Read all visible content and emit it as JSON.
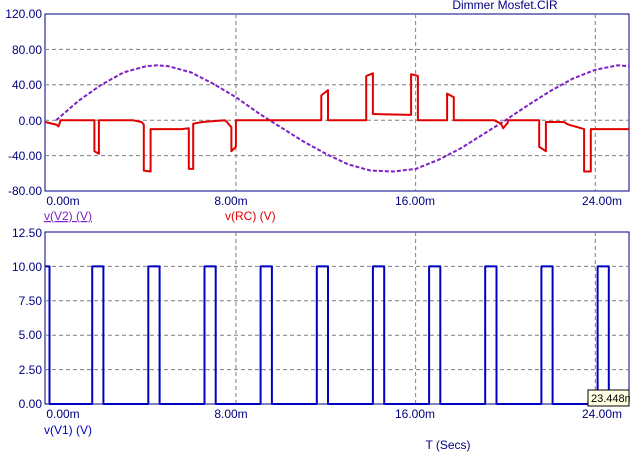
{
  "window": {
    "title": "Dimmer Mosfet.CIR"
  },
  "colors": {
    "axis": "#000080",
    "grid": "#7f7f7f",
    "v2": "#7f1fc8",
    "rc": "#e00000",
    "v1": "#0000c0",
    "background": "#ffffff"
  },
  "x_axis": {
    "label": "T (Secs)",
    "tick_labels": [
      "0.00m",
      "8.00m",
      "16.00m",
      "24.00m"
    ]
  },
  "cursor_readout": "23.448m",
  "chart_data": [
    {
      "type": "line",
      "x_range": [
        -0.0005,
        0.0255
      ],
      "ylim": [
        -80,
        120
      ],
      "y_tick_labels": [
        "120.00",
        "80.00",
        "40.00",
        "0.00",
        "-40.00",
        "-80.00"
      ],
      "grid": true,
      "series": [
        {
          "name": "v(V2) (V)",
          "points": [
            [
              0,
              0
            ],
            [
              0.001,
              22
            ],
            [
              0.002,
              40
            ],
            [
              0.003,
              54
            ],
            [
              0.004,
              61
            ],
            [
              0.0045,
              62
            ],
            [
              0.005,
              61
            ],
            [
              0.006,
              54
            ],
            [
              0.007,
              41
            ],
            [
              0.008,
              26
            ],
            [
              0.009,
              8
            ],
            [
              0.01,
              -8
            ],
            [
              0.011,
              -24
            ],
            [
              0.012,
              -38
            ],
            [
              0.013,
              -50
            ],
            [
              0.014,
              -57
            ],
            [
              0.015,
              -58
            ],
            [
              0.016,
              -55
            ],
            [
              0.017,
              -45
            ],
            [
              0.018,
              -32
            ],
            [
              0.019,
              -16
            ],
            [
              0.02,
              0
            ],
            [
              0.021,
              17
            ],
            [
              0.022,
              33
            ],
            [
              0.023,
              47
            ],
            [
              0.024,
              57
            ],
            [
              0.025,
              62
            ],
            [
              0.0255,
              61
            ]
          ]
        },
        {
          "name": "v(RC) (V)",
          "points": [
            [
              -0.0005,
              -2
            ],
            [
              0,
              -5
            ],
            [
              5e-05,
              -6
            ],
            [
              0.0001,
              -7
            ],
            [
              0.0002,
              0
            ],
            [
              0.0016,
              0
            ],
            [
              0.0017,
              0
            ],
            [
              0.0017,
              -35
            ],
            [
              0.0019,
              -38
            ],
            [
              0.0019,
              -38
            ],
            [
              0.0019,
              0
            ],
            [
              0.0034,
              0
            ],
            [
              0.0038,
              -2
            ],
            [
              0.0039,
              -5
            ],
            [
              0.0039,
              -57
            ],
            [
              0.0042,
              -58
            ],
            [
              0.0042,
              -58
            ],
            [
              0.0042,
              -10
            ],
            [
              0.0056,
              -10
            ],
            [
              0.0056,
              -10
            ],
            [
              0.0059,
              -9
            ],
            [
              0.0059,
              -55
            ],
            [
              0.0061,
              -55
            ],
            [
              0.0061,
              -55
            ],
            [
              0.0061,
              -4
            ],
            [
              0.0065,
              -2
            ],
            [
              0.0075,
              0
            ],
            [
              0.0076,
              -2
            ],
            [
              0.0078,
              -8
            ],
            [
              0.0078,
              -35
            ],
            [
              0.008,
              -30
            ],
            [
              0.008,
              0
            ],
            [
              0.0095,
              0
            ],
            [
              0.0105,
              0
            ],
            [
              0.011,
              0
            ],
            [
              0.0118,
              0
            ],
            [
              0.0118,
              0
            ],
            [
              0.0118,
              28
            ],
            [
              0.0121,
              34
            ],
            [
              0.0121,
              0
            ],
            [
              0.0138,
              0
            ],
            [
              0.0138,
              0
            ],
            [
              0.0138,
              50
            ],
            [
              0.0141,
              53
            ],
            [
              0.0141,
              7
            ],
            [
              0.0158,
              6
            ],
            [
              0.0158,
              52
            ],
            [
              0.0161,
              50
            ],
            [
              0.0161,
              0
            ],
            [
              0.0174,
              0
            ],
            [
              0.0174,
              30
            ],
            [
              0.0177,
              26
            ],
            [
              0.0177,
              0
            ],
            [
              0.0195,
              0
            ],
            [
              0.0198,
              -4
            ],
            [
              0.0199,
              -9
            ],
            [
              0.0201,
              -3
            ],
            [
              0.0201,
              0
            ],
            [
              0.0215,
              0
            ],
            [
              0.0215,
              -30
            ],
            [
              0.0218,
              -35
            ],
            [
              0.0218,
              -2
            ],
            [
              0.0226,
              -2
            ],
            [
              0.0228,
              -5
            ],
            [
              0.0235,
              -10
            ],
            [
              0.0235,
              -58
            ],
            [
              0.0238,
              -58
            ],
            [
              0.0238,
              -10
            ],
            [
              0.0248,
              -10
            ],
            [
              0.0255,
              -10
            ]
          ]
        }
      ]
    },
    {
      "type": "line",
      "x_range": [
        -0.0005,
        0.0255
      ],
      "ylim": [
        0,
        12.5
      ],
      "y_tick_labels": [
        "12.50",
        "10.00",
        "7.50",
        "5.00",
        "2.50",
        "0.00"
      ],
      "grid": true,
      "series": [
        {
          "name": "v(V1) (V)",
          "points": [
            [
              -0.0005,
              10
            ],
            [
              -0.0003,
              10
            ],
            [
              -0.0003,
              0
            ],
            [
              0.0016,
              0
            ],
            [
              0.0016,
              10
            ],
            [
              0.0021,
              10
            ],
            [
              0.0021,
              0
            ],
            [
              0.0041,
              0
            ],
            [
              0.0041,
              10
            ],
            [
              0.0046,
              10
            ],
            [
              0.0046,
              0
            ],
            [
              0.0066,
              0
            ],
            [
              0.0066,
              10
            ],
            [
              0.0071,
              10
            ],
            [
              0.0071,
              0
            ],
            [
              0.0091,
              0
            ],
            [
              0.0091,
              10
            ],
            [
              0.0096,
              10
            ],
            [
              0.0096,
              0
            ],
            [
              0.0116,
              0
            ],
            [
              0.0116,
              10
            ],
            [
              0.0121,
              10
            ],
            [
              0.0121,
              0
            ],
            [
              0.0141,
              0
            ],
            [
              0.0141,
              10
            ],
            [
              0.0146,
              10
            ],
            [
              0.0146,
              0
            ],
            [
              0.0166,
              0
            ],
            [
              0.0166,
              10
            ],
            [
              0.0171,
              10
            ],
            [
              0.0171,
              0
            ],
            [
              0.0191,
              0
            ],
            [
              0.0191,
              10
            ],
            [
              0.0196,
              10
            ],
            [
              0.0196,
              0
            ],
            [
              0.0216,
              0
            ],
            [
              0.0216,
              10
            ],
            [
              0.0221,
              10
            ],
            [
              0.0221,
              0
            ],
            [
              0.0241,
              0
            ],
            [
              0.0241,
              10
            ],
            [
              0.0246,
              10
            ],
            [
              0.0246,
              0
            ],
            [
              0.0255,
              0
            ]
          ]
        }
      ]
    }
  ]
}
